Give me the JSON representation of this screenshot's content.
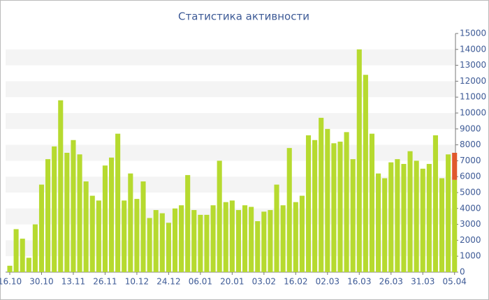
{
  "chart_data": {
    "type": "stacked-bar",
    "title": "Статистика активности",
    "categories": [
      "16.10",
      null,
      null,
      null,
      null,
      "30.10",
      null,
      null,
      null,
      null,
      "13.11",
      null,
      null,
      null,
      null,
      "26.11",
      null,
      null,
      null,
      null,
      "10.12",
      null,
      null,
      null,
      null,
      "24.12",
      null,
      null,
      null,
      null,
      "06.01",
      null,
      null,
      null,
      null,
      "20.01",
      null,
      null,
      null,
      null,
      "03.02",
      null,
      null,
      null,
      null,
      "16.02",
      null,
      null,
      null,
      null,
      "02.03",
      null,
      null,
      null,
      null,
      "16.03",
      null,
      null,
      null,
      null,
      "26.03",
      null,
      null,
      null,
      null,
      "31.03",
      null,
      null,
      null,
      null,
      "05.04"
    ],
    "series": [
      {
        "color": "#b6da2f",
        "values": [
          400,
          2700,
          2100,
          900,
          3000,
          5500,
          7100,
          7900,
          10800,
          7500,
          8300,
          7400,
          5700,
          4800,
          4500,
          6700,
          7200,
          8700,
          4500,
          6200,
          4600,
          5700,
          3400,
          3900,
          3700,
          3100,
          4000,
          4200,
          6100,
          3900,
          3600,
          3600,
          4200,
          7000,
          4400,
          4500,
          3900,
          4200,
          4100,
          3200,
          3800,
          3900,
          5500,
          4200,
          7800,
          4400,
          4800,
          8600,
          8300,
          9700,
          9000,
          8100,
          8200,
          8800,
          7100,
          14000,
          12400,
          8700,
          6200,
          5900,
          6900,
          7100,
          6800,
          7600,
          7000,
          6500,
          6800,
          8600,
          5900,
          7400,
          5800
        ]
      },
      {
        "color": "#e0582c",
        "values": [
          null,
          null,
          null,
          null,
          null,
          null,
          null,
          null,
          null,
          null,
          null,
          null,
          null,
          null,
          null,
          null,
          null,
          null,
          null,
          null,
          null,
          null,
          null,
          null,
          null,
          null,
          null,
          null,
          null,
          null,
          null,
          null,
          null,
          null,
          null,
          null,
          null,
          null,
          null,
          null,
          null,
          null,
          null,
          null,
          null,
          null,
          null,
          null,
          null,
          null,
          null,
          null,
          null,
          null,
          null,
          null,
          null,
          null,
          null,
          null,
          null,
          null,
          null,
          null,
          null,
          null,
          null,
          null,
          null,
          null,
          1700
        ]
      }
    ],
    "ylim": [
      0,
      15000
    ],
    "yticks": [
      0,
      1000,
      2000,
      3000,
      4000,
      5000,
      6000,
      7000,
      8000,
      9000,
      10000,
      11000,
      12000,
      13000,
      14000,
      15000
    ],
    "grid": true
  }
}
